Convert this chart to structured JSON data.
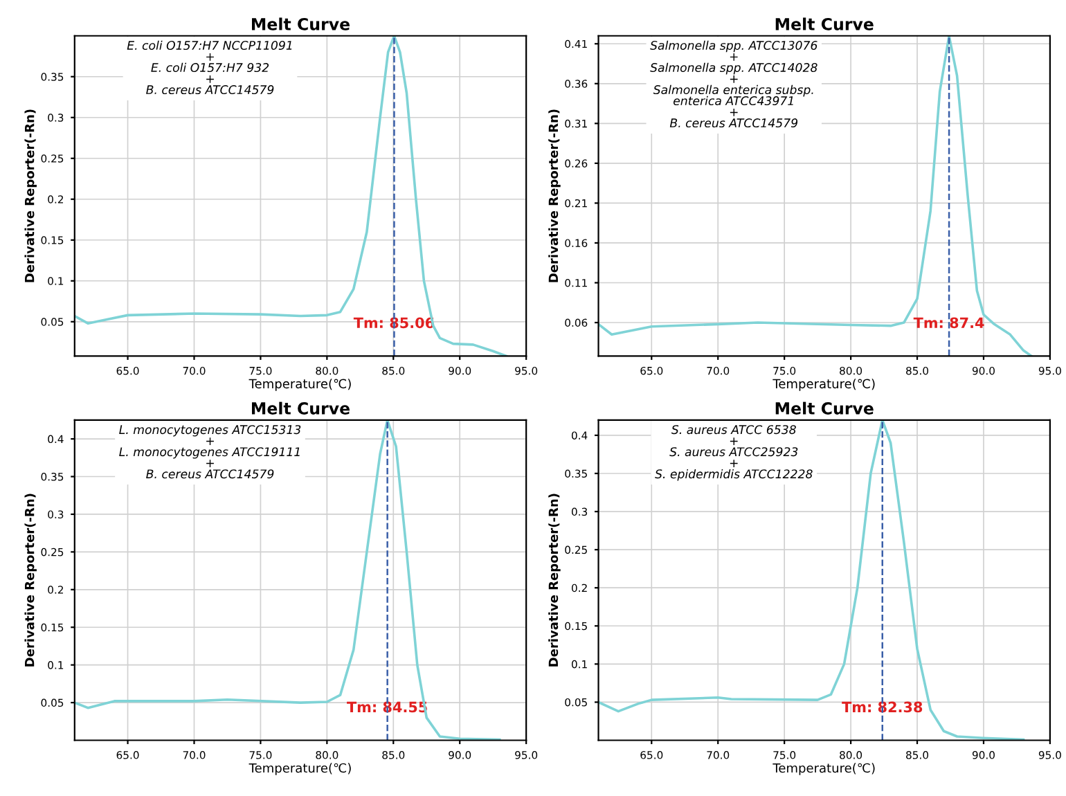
{
  "chart_data": [
    {
      "type": "line",
      "title": "Melt Curve",
      "xlabel": "Temperature(℃)",
      "ylabel": "Derivative Reporter(-Rn)",
      "annotations": [
        "E. coli O157:H7 NCCP11091\n+\nE. coli O157:H7 932\n+\nB. cereus ATCC14579"
      ],
      "xlim": [
        61,
        95
      ],
      "ylim": [
        0.008,
        0.4
      ],
      "xticks": [
        {
          "value": 65,
          "label": "65.0"
        },
        {
          "value": 70,
          "label": "70.0"
        },
        {
          "value": 75,
          "label": "75.0"
        },
        {
          "value": 80,
          "label": "80.0"
        },
        {
          "value": 85,
          "label": "85.0"
        },
        {
          "value": 90,
          "label": "90.0"
        },
        {
          "value": 95,
          "label": "95.0"
        }
      ],
      "yticks": [
        0.05,
        0.1,
        0.15,
        0.2,
        0.25,
        0.3,
        0.35
      ],
      "grid": true,
      "ref_lines": [
        {
          "axis": "x",
          "value": 85.06,
          "label": "Tm: 85.06",
          "color": "#3a5fa8"
        }
      ],
      "series": [
        {
          "color": "#7fd3d6",
          "x": [
            61,
            62,
            63.5,
            65,
            70,
            75,
            78,
            80,
            81,
            82,
            83,
            84,
            84.6,
            85.06,
            85.5,
            86,
            86.7,
            87.3,
            88,
            88.5,
            89.5,
            91,
            92.5,
            93.5
          ],
          "values": [
            0.057,
            0.048,
            0.053,
            0.058,
            0.06,
            0.059,
            0.057,
            0.058,
            0.062,
            0.09,
            0.16,
            0.3,
            0.38,
            0.4,
            0.38,
            0.33,
            0.2,
            0.1,
            0.045,
            0.03,
            0.023,
            0.022,
            0.014,
            0.008
          ]
        }
      ]
    },
    {
      "type": "line",
      "title": "Melt Curve",
      "xlabel": "Temperature(℃)",
      "ylabel": "Derivative Reporter(-Rn)",
      "annotations": [
        "Salmonella spp. ATCC13076\n+\nSalmonella spp. ATCC14028\n+\nSalmonella enterica subsp.\nenterica ATCC43971\n+\nB. cereus ATCC14579"
      ],
      "xlim": [
        61,
        95
      ],
      "ylim": [
        0.018,
        0.42
      ],
      "xticks": [
        {
          "value": 65,
          "label": "65.0"
        },
        {
          "value": 70,
          "label": "70.0"
        },
        {
          "value": 75,
          "label": "75.0"
        },
        {
          "value": 80,
          "label": "80.0"
        },
        {
          "value": 85,
          "label": "85.0"
        },
        {
          "value": 90,
          "label": "90.0"
        },
        {
          "value": 95,
          "label": "95.0"
        }
      ],
      "yticks": [
        0.06,
        0.11,
        0.16,
        0.21,
        0.26,
        0.31,
        0.36,
        0.41
      ],
      "grid": true,
      "ref_lines": [
        {
          "axis": "x",
          "value": 87.4,
          "label": "Tm: 87.4",
          "color": "#3a5fa8"
        }
      ],
      "series": [
        {
          "color": "#7fd3d6",
          "x": [
            61,
            62,
            65,
            70,
            73,
            80,
            83,
            84,
            85,
            86,
            86.7,
            87.4,
            88,
            88.8,
            89.5,
            90,
            90.8,
            92,
            93,
            93.6
          ],
          "values": [
            0.058,
            0.045,
            0.055,
            0.058,
            0.06,
            0.057,
            0.056,
            0.06,
            0.09,
            0.2,
            0.35,
            0.42,
            0.37,
            0.22,
            0.1,
            0.07,
            0.058,
            0.045,
            0.025,
            0.018
          ]
        }
      ]
    },
    {
      "type": "line",
      "title": "Melt Curve",
      "xlabel": "Temperature(℃)",
      "ylabel": "Derivative Reporter(-Rn)",
      "annotations": [
        "L. monocytogenes ATCC15313\n+\nL. monocytogenes ATCC19111\n+\nB. cereus ATCC14579"
      ],
      "xlim": [
        61,
        95
      ],
      "ylim": [
        0,
        0.425
      ],
      "xticks": [
        {
          "value": 65,
          "label": "65.0"
        },
        {
          "value": 70,
          "label": "70.0"
        },
        {
          "value": 75,
          "label": "75.0"
        },
        {
          "value": 80,
          "label": "80.0"
        },
        {
          "value": 85,
          "label": "85.0"
        },
        {
          "value": 90,
          "label": "90.0"
        },
        {
          "value": 95,
          "label": "95.0"
        }
      ],
      "yticks": [
        0.05,
        0.1,
        0.15,
        0.2,
        0.25,
        0.3,
        0.35,
        0.4
      ],
      "grid": true,
      "ref_lines": [
        {
          "axis": "x",
          "value": 84.55,
          "label": "Tm: 84.55",
          "color": "#3a5fa8"
        }
      ],
      "series": [
        {
          "color": "#7fd3d6",
          "x": [
            61,
            62,
            64,
            70,
            72.5,
            78,
            80,
            81,
            82,
            83,
            84,
            84.55,
            85.2,
            86,
            86.8,
            87.5,
            88.5,
            90,
            93
          ],
          "values": [
            0.05,
            0.043,
            0.052,
            0.052,
            0.054,
            0.05,
            0.051,
            0.06,
            0.12,
            0.25,
            0.38,
            0.425,
            0.39,
            0.25,
            0.1,
            0.03,
            0.005,
            0.002,
            0.001
          ]
        }
      ]
    },
    {
      "type": "line",
      "title": "Melt Curve",
      "xlabel": "Temperature(℃)",
      "ylabel": "Derivative Reporter(-Rn)",
      "annotations": [
        "S. aureus ATCC 6538\n+\nS. aureus ATCC25923\n+\nS. epidermidis ATCC12228"
      ],
      "xlim": [
        61,
        95
      ],
      "ylim": [
        0,
        0.42
      ],
      "xticks": [
        {
          "value": 65,
          "label": "65.0"
        },
        {
          "value": 70,
          "label": "70.0"
        },
        {
          "value": 75,
          "label": "75.0"
        },
        {
          "value": 80,
          "label": "80.0"
        },
        {
          "value": 85,
          "label": "85.0"
        },
        {
          "value": 90,
          "label": "90.0"
        },
        {
          "value": 95,
          "label": "95.0"
        }
      ],
      "yticks": [
        0.05,
        0.1,
        0.15,
        0.2,
        0.25,
        0.3,
        0.35,
        0.4
      ],
      "grid": true,
      "ref_lines": [
        {
          "axis": "x",
          "value": 82.38,
          "label": "Tm: 82.38",
          "color": "#3a5fa8"
        }
      ],
      "series": [
        {
          "color": "#7fd3d6",
          "x": [
            61,
            62.5,
            64,
            65,
            70,
            71,
            77.5,
            78.5,
            79.5,
            80.5,
            81.5,
            82.38,
            83,
            84,
            85,
            86,
            87,
            88,
            90,
            93
          ],
          "values": [
            0.05,
            0.038,
            0.048,
            0.053,
            0.056,
            0.054,
            0.053,
            0.06,
            0.1,
            0.2,
            0.35,
            0.42,
            0.39,
            0.26,
            0.12,
            0.04,
            0.012,
            0.005,
            0.003,
            0.001
          ]
        }
      ]
    }
  ]
}
